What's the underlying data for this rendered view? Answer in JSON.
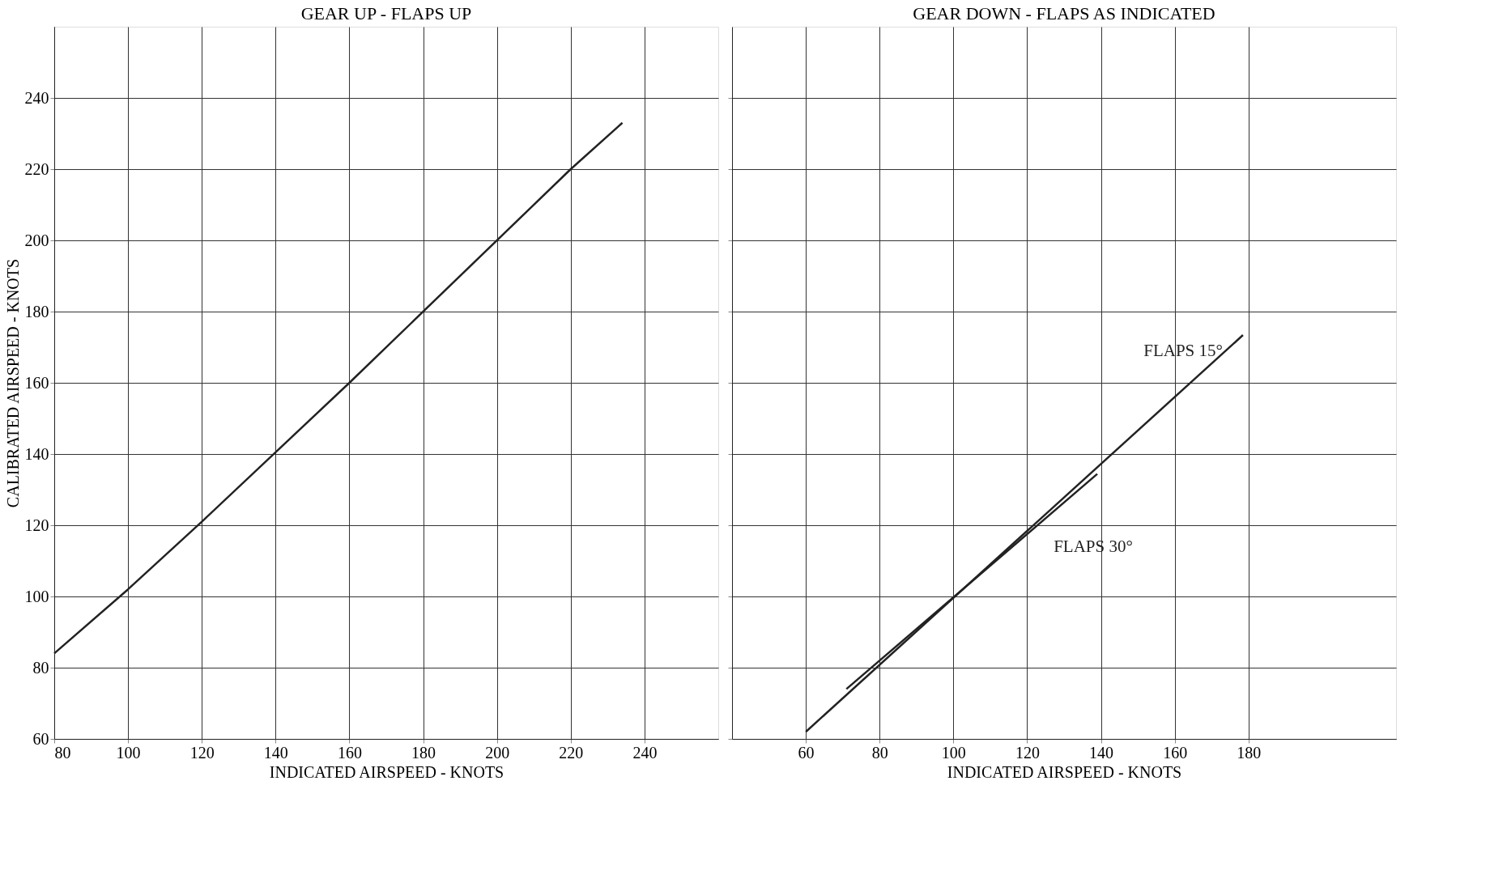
{
  "chart_data": [
    {
      "type": "line",
      "title": "GEAR UP - FLAPS UP",
      "xlabel": "INDICATED AIRSPEED - KNOTS",
      "ylabel": "CALIBRATED AIRSPEED - KNOTS",
      "series": [
        {
          "color": "#222222",
          "x": [
            80,
            100,
            120,
            160,
            220,
            234
          ],
          "values": [
            84,
            102,
            121,
            160,
            220,
            233
          ]
        }
      ],
      "xlim": [
        80,
        260
      ],
      "xticks": [
        80,
        100,
        120,
        140,
        160,
        180,
        200,
        220,
        240
      ],
      "ylim": [
        60,
        260
      ],
      "yticks": [
        60,
        80,
        100,
        120,
        140,
        160,
        180,
        200,
        220,
        240
      ],
      "grid": true,
      "marker": "none",
      "line_style": "solid"
    },
    {
      "type": "line",
      "title": "GEAR DOWN - FLAPS AS INDICATED",
      "xlabel": "INDICATED AIRSPEED - KNOTS",
      "series": [
        {
          "name": "FLAPS 15°",
          "color": "#222222",
          "x": [
            60,
            178.5
          ],
          "values": [
            62,
            173.4
          ]
        },
        {
          "name": "FLAPS 30°",
          "color": "#222222",
          "x": [
            71,
            139
          ],
          "values": [
            74,
            134.4
          ]
        }
      ],
      "xlim": [
        40,
        220
      ],
      "xticks": [
        60,
        80,
        100,
        120,
        140,
        160,
        180
      ],
      "ylim": [
        60,
        260
      ],
      "yticks": [
        60,
        80,
        100,
        120,
        140,
        160,
        180,
        200,
        220,
        240
      ],
      "tick_labels": "x",
      "grid": true,
      "marker": "none",
      "line_style": "solid"
    }
  ]
}
